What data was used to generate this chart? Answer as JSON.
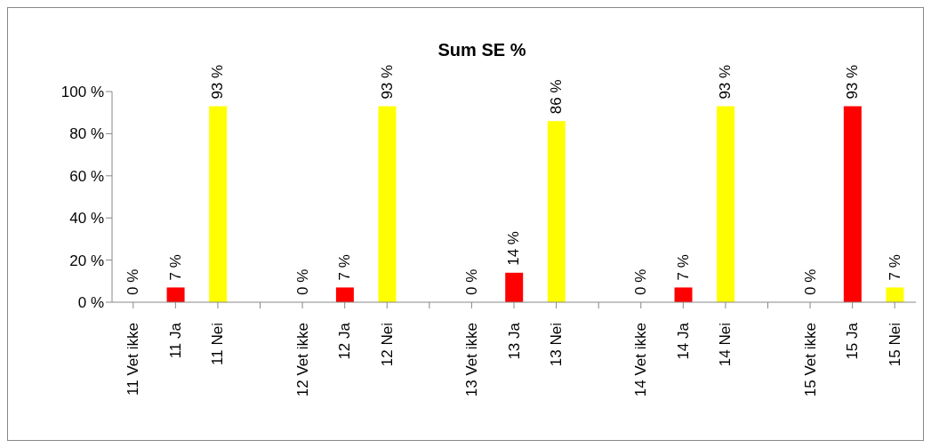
{
  "chart_data": {
    "type": "bar",
    "title": "Sum SE %",
    "categories": [
      "11 Vet ikke",
      "11 Ja",
      "11 Nei",
      null,
      "12 Vet ikke",
      "12 Ja",
      "12 Nei",
      null,
      "13 Vet ikke",
      "13 Ja",
      "13 Nei",
      null,
      "14 Vet ikke",
      "14 Ja",
      "14 Nei",
      null,
      "15 Vet ikke",
      "15 Ja",
      "15 Nei"
    ],
    "values": [
      0,
      7,
      93,
      null,
      0,
      7,
      93,
      null,
      0,
      14,
      86,
      null,
      0,
      7,
      93,
      null,
      0,
      93,
      7
    ],
    "value_labels": [
      "0 %",
      "7 %",
      "93 %",
      null,
      "0 %",
      "7 %",
      "93 %",
      null,
      "0 %",
      "14 %",
      "86 %",
      null,
      "0 %",
      "7 %",
      "93 %",
      null,
      "0 %",
      "93 %",
      "7 %"
    ],
    "colors": [
      null,
      "#ff0000",
      "#ffff00",
      null,
      null,
      "#ff0000",
      "#ffff00",
      null,
      null,
      "#ff0000",
      "#ffff00",
      null,
      null,
      "#ff0000",
      "#ffff00",
      null,
      null,
      "#ff0000",
      "#ffff00"
    ],
    "ylim": [
      0,
      100
    ],
    "yticks": [
      {
        "value": 0,
        "label": "0 %"
      },
      {
        "value": 20,
        "label": "20 %"
      },
      {
        "value": 40,
        "label": "40 %"
      },
      {
        "value": 60,
        "label": "60 %"
      },
      {
        "value": 80,
        "label": "80 %"
      },
      {
        "value": 100,
        "label": "100 %"
      }
    ],
    "grid": false,
    "legend": false
  }
}
